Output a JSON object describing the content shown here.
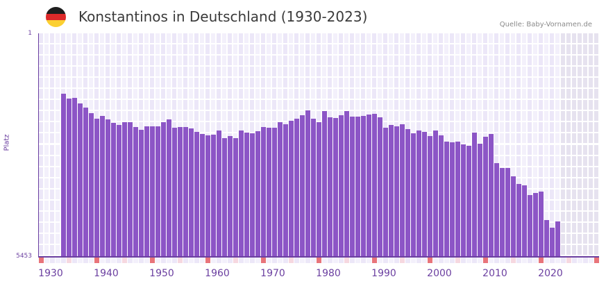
{
  "header": {
    "title": "Konstantinos in Deutschland (1930-2023)",
    "source": "Quelle: Baby-Vornamen.de",
    "flag_colors": [
      "#1e1e1e",
      "#dd2a2a",
      "#fbd032"
    ]
  },
  "colors": {
    "bar": "#8c55c6",
    "axis": "#6b3fa0",
    "grid_light": "#f3f0fb",
    "grid_dark": "#ece7f8",
    "future": "#e6e2ef",
    "marker_red": "#e8747a",
    "marker_pink": "#f6d8e0"
  },
  "chart_data": {
    "type": "bar",
    "title": "Konstantinos in Deutschland (1930-2023)",
    "xlabel": "",
    "ylabel": "Platz",
    "y_axis_inverted": true,
    "ylim": [
      1,
      5453
    ],
    "y_ticks": [
      "1",
      "5453"
    ],
    "x_ticks": [
      "1930",
      "1940",
      "1950",
      "1960",
      "1970",
      "1980",
      "1990",
      "2000",
      "2010",
      "2020"
    ],
    "x_range": [
      1928,
      2028
    ],
    "grid": true,
    "legend": null,
    "categories": [
      1932,
      1933,
      1934,
      1935,
      1936,
      1937,
      1938,
      1939,
      1940,
      1941,
      1942,
      1943,
      1944,
      1945,
      1946,
      1947,
      1948,
      1949,
      1950,
      1951,
      1952,
      1953,
      1954,
      1955,
      1956,
      1957,
      1958,
      1959,
      1960,
      1961,
      1962,
      1963,
      1964,
      1965,
      1966,
      1967,
      1968,
      1969,
      1970,
      1971,
      1972,
      1973,
      1974,
      1975,
      1976,
      1977,
      1978,
      1979,
      1980,
      1981,
      1982,
      1983,
      1984,
      1985,
      1986,
      1987,
      1988,
      1989,
      1990,
      1991,
      1992,
      1993,
      1994,
      1995,
      1996,
      1997,
      1998,
      1999,
      2000,
      2001,
      2002,
      2003,
      2004,
      2005,
      2006,
      2007,
      2008,
      2009,
      2010,
      2011,
      2012,
      2013,
      2014,
      2015,
      2016,
      2017,
      2018,
      2019,
      2020,
      2021
    ],
    "values": [
      1478,
      1597,
      1580,
      1716,
      1818,
      1954,
      2090,
      2022,
      2107,
      2192,
      2243,
      2175,
      2175,
      2294,
      2362,
      2277,
      2277,
      2277,
      2175,
      2107,
      2311,
      2294,
      2294,
      2328,
      2413,
      2464,
      2498,
      2481,
      2379,
      2566,
      2515,
      2566,
      2379,
      2430,
      2447,
      2396,
      2294,
      2311,
      2311,
      2175,
      2226,
      2141,
      2090,
      2005,
      1886,
      2090,
      2175,
      1903,
      2056,
      2073,
      2005,
      1903,
      2039,
      2039,
      2022,
      1988,
      1971,
      2056,
      2311,
      2243,
      2277,
      2226,
      2345,
      2447,
      2379,
      2413,
      2515,
      2379,
      2498,
      2651,
      2668,
      2651,
      2719,
      2753,
      2430,
      2702,
      2532,
      2464,
      3178,
      3297,
      3297,
      3501,
      3688,
      3722,
      3960,
      3909,
      3875,
      4572,
      4758,
      4606
    ],
    "future_shaded_from": 2022
  }
}
